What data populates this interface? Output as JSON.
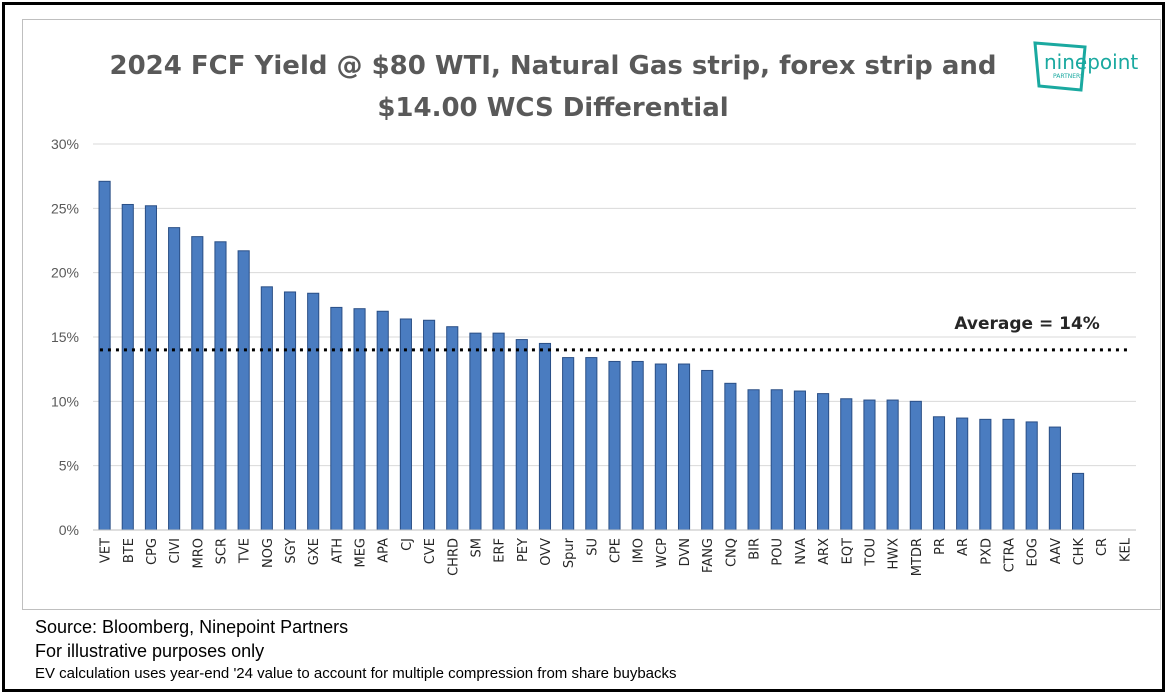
{
  "chart_data": {
    "type": "bar",
    "title": "2024 FCF Yield @ $80 WTI, Natural Gas strip, forex strip and $14.00 WCS Differential",
    "title_lines": [
      "2024 FCF Yield @ $80 WTI, Natural Gas strip, forex strip and",
      "$14.00 WCS Differential"
    ],
    "categories": [
      "VET",
      "BTE",
      "CPG",
      "CIVI",
      "MRO",
      "SCR",
      "TVE",
      "NOG",
      "SGY",
      "GXE",
      "ATH",
      "MEG",
      "APA",
      "CJ",
      "CVE",
      "CHRD",
      "SM",
      "ERF",
      "PEY",
      "OVV",
      "Spur",
      "SU",
      "CPE",
      "IMO",
      "WCP",
      "DVN",
      "FANG",
      "CNQ",
      "BIR",
      "POU",
      "NVA",
      "ARX",
      "EQT",
      "TOU",
      "HWX",
      "MTDR",
      "PR",
      "AR",
      "PXD",
      "CTRA",
      "EOG",
      "AAV",
      "CHK",
      "CR",
      "KEL"
    ],
    "values": [
      27.1,
      25.3,
      25.2,
      23.5,
      22.8,
      22.4,
      21.7,
      18.9,
      18.5,
      18.4,
      17.3,
      17.2,
      17.0,
      16.4,
      16.3,
      15.8,
      15.3,
      15.3,
      14.8,
      14.5,
      13.4,
      13.4,
      13.1,
      13.1,
      12.9,
      12.9,
      12.4,
      11.4,
      10.9,
      10.9,
      10.8,
      10.6,
      10.2,
      10.1,
      10.1,
      10.0,
      8.8,
      8.7,
      8.6,
      8.6,
      8.4,
      8.0,
      4.4,
      0,
      0
    ],
    "ylim": [
      0,
      30
    ],
    "yticks": [
      "0%",
      "5%",
      "10%",
      "15%",
      "20%",
      "25%",
      "30%"
    ],
    "ytick_values": [
      0,
      5,
      10,
      15,
      20,
      25,
      30
    ],
    "average": {
      "value": 14,
      "label": "Average = 14%"
    },
    "grid": true,
    "bar_color": "#4a7cc0",
    "bar_edge_color": "#2a4f86",
    "average_line_color": "#000000"
  },
  "logo": {
    "name": "ninepoint",
    "sub": "PARTNERS",
    "color": "#1aa9a0"
  },
  "footer": {
    "source": "Source: Bloomberg, Ninepoint Partners",
    "disclaimer": "For illustrative purposes only",
    "note": "EV calculation uses year-end '24 value to account for multiple compression from share buybacks"
  }
}
